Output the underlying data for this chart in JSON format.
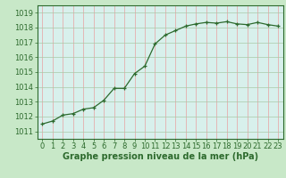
{
  "x": [
    0,
    1,
    2,
    3,
    4,
    5,
    6,
    7,
    8,
    9,
    10,
    11,
    12,
    13,
    14,
    15,
    16,
    17,
    18,
    19,
    20,
    21,
    22,
    23
  ],
  "y": [
    1011.5,
    1011.7,
    1012.1,
    1012.2,
    1012.5,
    1012.6,
    1013.1,
    1013.9,
    1013.9,
    1014.9,
    1015.4,
    1016.9,
    1017.5,
    1017.8,
    1018.1,
    1018.25,
    1018.35,
    1018.3,
    1018.4,
    1018.25,
    1018.2,
    1018.35,
    1018.2,
    1018.1
  ],
  "line_color": "#2d6a2d",
  "marker_color": "#2d6a2d",
  "fig_bg_color": "#c8e8c8",
  "plot_bg_color": "#d8f0ec",
  "vgrid_color": "#e8a0a0",
  "hgrid_color": "#a8c8a8",
  "xlabel": "Graphe pression niveau de la mer (hPa)",
  "xlabel_color": "#2d6a2d",
  "ylabel_ticks": [
    1011,
    1012,
    1013,
    1014,
    1015,
    1016,
    1017,
    1018,
    1019
  ],
  "ylim": [
    1010.5,
    1019.5
  ],
  "xlim": [
    -0.5,
    23.5
  ],
  "tick_color": "#2d6a2d",
  "tick_label_color": "#2d6a2d",
  "xlabel_fontsize": 7,
  "tick_fontsize": 6,
  "spine_color": "#2d6a2d"
}
